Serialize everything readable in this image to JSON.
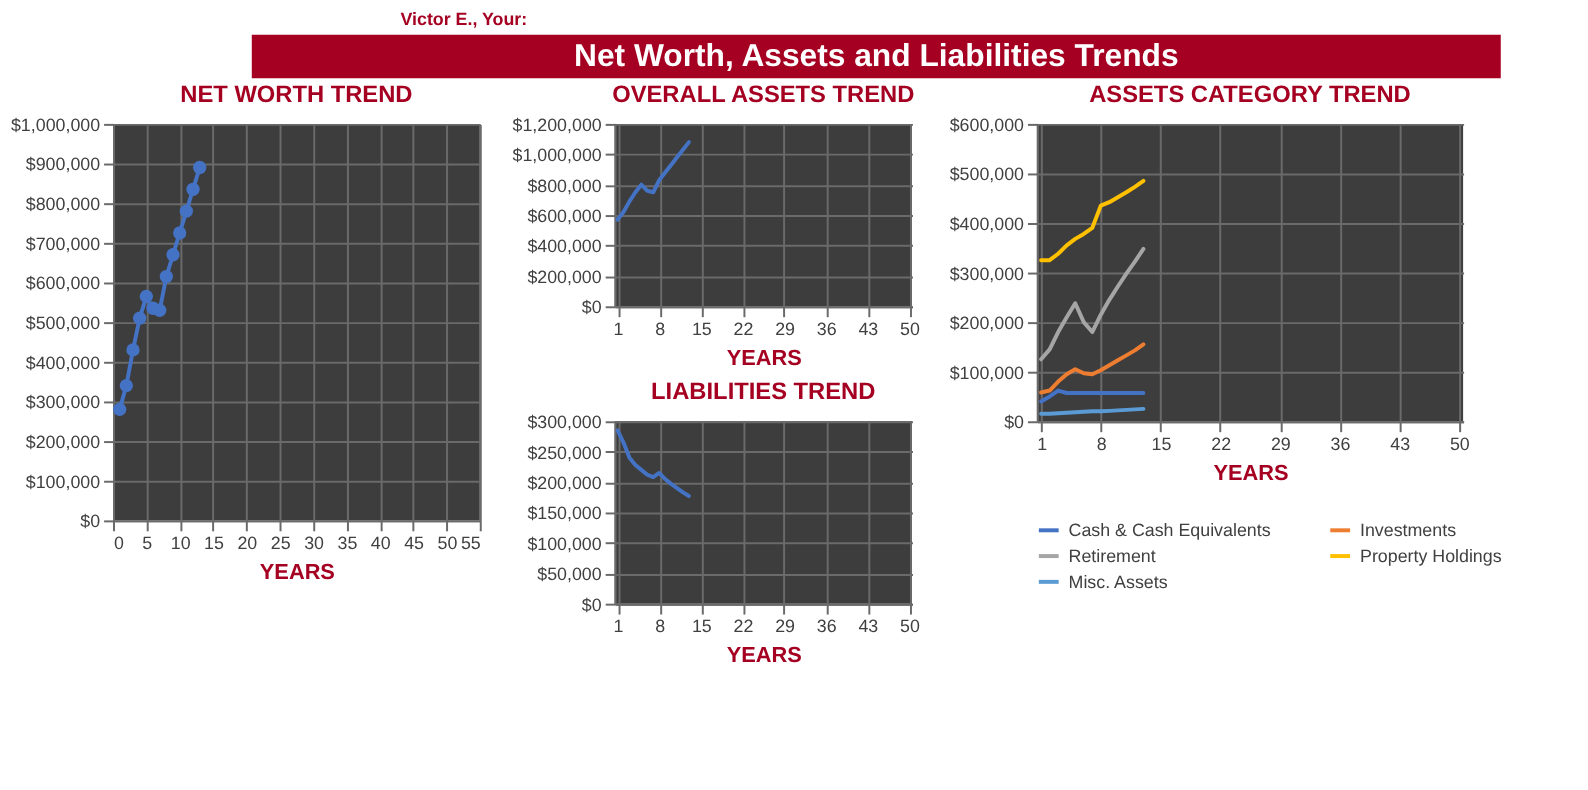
{
  "chart_data": [
    {
      "type": "other",
      "title": "Net Worth, Assets and Liabilities Trends",
      "annotations": [
        "Victor E., Your:"
      ]
    },
    {
      "type": "line",
      "title": "NET WORTH TREND",
      "xlabel": "YEARS",
      "marker": "circle",
      "grid": true,
      "color": "#4472c4",
      "x": [
        1,
        2,
        3,
        4,
        5,
        6,
        7,
        8,
        9,
        10,
        11,
        12,
        13
      ],
      "values": [
        280000,
        340000,
        430000,
        510000,
        565000,
        535000,
        530000,
        615000,
        670000,
        725000,
        780000,
        835000,
        890000
      ],
      "xlim": [
        0,
        55
      ],
      "xticks": [
        0,
        5,
        10,
        15,
        20,
        25,
        30,
        35,
        40,
        45,
        50,
        55
      ],
      "ylim": [
        0,
        1000000
      ],
      "yticks": [
        {
          "value": 0,
          "label": "$0"
        },
        {
          "value": 100000,
          "label": "$100,000"
        },
        {
          "value": 200000,
          "label": "$200,000"
        },
        {
          "value": 300000,
          "label": "$300,000"
        },
        {
          "value": 400000,
          "label": "$400,000"
        },
        {
          "value": 500000,
          "label": "$500,000"
        },
        {
          "value": 600000,
          "label": "$600,000"
        },
        {
          "value": 700000,
          "label": "$700,000"
        },
        {
          "value": 800000,
          "label": "$800,000"
        },
        {
          "value": 900000,
          "label": "$900,000"
        },
        {
          "value": 1000000,
          "label": "$1,000,000"
        }
      ]
    },
    {
      "type": "line",
      "title": "OVERALL ASSETS TREND",
      "xlabel": "YEARS",
      "grid": true,
      "color": "#4472c4",
      "x": [
        1,
        2,
        3,
        4,
        5,
        6,
        7,
        8,
        9,
        10,
        11,
        12,
        13
      ],
      "values": [
        570000,
        620000,
        690000,
        750000,
        800000,
        760000,
        750000,
        830000,
        880000,
        930000,
        980000,
        1030000,
        1080000
      ],
      "xlim": [
        0.5,
        50.5
      ],
      "xticks": [
        1,
        8,
        15,
        22,
        29,
        36,
        43,
        50
      ],
      "ylim": [
        0,
        1200000
      ],
      "yticks": [
        {
          "value": 0,
          "label": "$0"
        },
        {
          "value": 200000,
          "label": "$200,000"
        },
        {
          "value": 400000,
          "label": "$400,000"
        },
        {
          "value": 600000,
          "label": "$600,000"
        },
        {
          "value": 800000,
          "label": "$800,000"
        },
        {
          "value": 1000000,
          "label": "$1,000,000"
        },
        {
          "value": 1200000,
          "label": "$1,200,000"
        }
      ]
    },
    {
      "type": "line",
      "title": "LIABILITIES TREND",
      "xlabel": "YEARS",
      "grid": true,
      "color": "#4472c4",
      "x": [
        1,
        2,
        3,
        4,
        5,
        6,
        7,
        8,
        9,
        10,
        11,
        12,
        13
      ],
      "values": [
        285000,
        265000,
        240000,
        228000,
        220000,
        212000,
        208000,
        215000,
        205000,
        197000,
        190000,
        183000,
        177000
      ],
      "xlim": [
        0.5,
        50.5
      ],
      "xticks": [
        1,
        8,
        15,
        22,
        29,
        36,
        43,
        50
      ],
      "ylim": [
        0,
        300000
      ],
      "yticks": [
        {
          "value": 0,
          "label": "$0"
        },
        {
          "value": 50000,
          "label": "$50,000"
        },
        {
          "value": 100000,
          "label": "$100,000"
        },
        {
          "value": 150000,
          "label": "$150,000"
        },
        {
          "value": 200000,
          "label": "$200,000"
        },
        {
          "value": 250000,
          "label": "$250,000"
        },
        {
          "value": 300000,
          "label": "$300,000"
        }
      ]
    },
    {
      "type": "line",
      "title": "ASSETS CATEGORY TREND",
      "xlabel": "YEARS",
      "grid": true,
      "legend": "bottom",
      "x": [
        1,
        2,
        3,
        4,
        5,
        6,
        7,
        8,
        9,
        10,
        11,
        12,
        13
      ],
      "series": [
        {
          "name": "Cash & Cash Equivalents",
          "color": "#4472c4",
          "values": [
            40000,
            50000,
            62000,
            57000,
            57000,
            57000,
            57000,
            57000,
            57000,
            57000,
            57000,
            57000,
            57000
          ]
        },
        {
          "name": "Investments",
          "color": "#ed7d31",
          "values": [
            58000,
            62000,
            80000,
            95000,
            105000,
            97000,
            95000,
            103000,
            113000,
            123000,
            133000,
            143000,
            155000
          ]
        },
        {
          "name": "Retirement",
          "color": "#a5a5a5",
          "values": [
            125000,
            145000,
            180000,
            210000,
            238000,
            200000,
            180000,
            215000,
            245000,
            272000,
            298000,
            322000,
            348000
          ]
        },
        {
          "name": "Property Holdings",
          "color": "#ffc000",
          "values": [
            325000,
            325000,
            338000,
            355000,
            368000,
            378000,
            390000,
            435000,
            442000,
            452000,
            462000,
            473000,
            485000
          ]
        },
        {
          "name": "Misc. Assets",
          "color": "#5b9bd5",
          "values": [
            15000,
            15000,
            16000,
            17000,
            18000,
            19000,
            20000,
            20000,
            21000,
            22000,
            23000,
            24000,
            25000
          ]
        }
      ],
      "xlim": [
        0.5,
        50.5
      ],
      "xticks": [
        1,
        8,
        15,
        22,
        29,
        36,
        43,
        50
      ],
      "ylim": [
        0,
        600000
      ],
      "yticks": [
        {
          "value": 0,
          "label": "$0"
        },
        {
          "value": 100000,
          "label": "$100,000"
        },
        {
          "value": 200000,
          "label": "$200,000"
        },
        {
          "value": 300000,
          "label": "$300,000"
        },
        {
          "value": 400000,
          "label": "$400,000"
        },
        {
          "value": 500000,
          "label": "$500,000"
        },
        {
          "value": 600000,
          "label": "$600,000"
        }
      ]
    }
  ]
}
